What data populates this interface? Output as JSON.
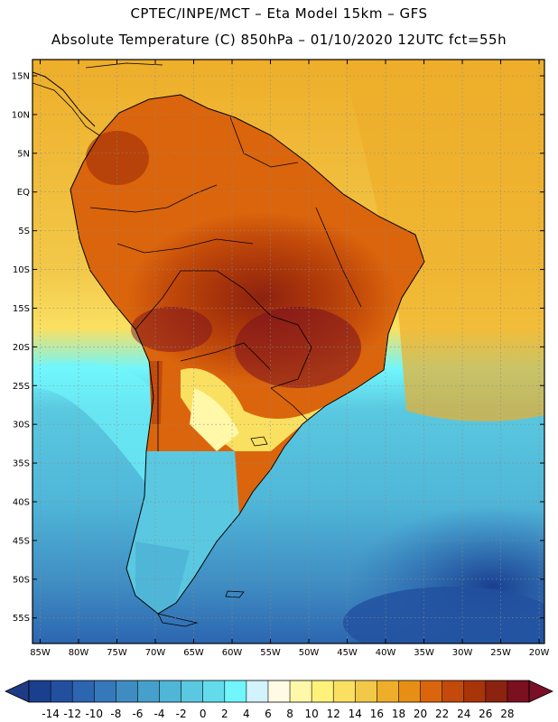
{
  "title": {
    "line1": "CPTEC/INPE/MCT –  Eta Model 15km – GFS",
    "line2": "Absolute Temperature (C) 850hPa – 01/10/2020 12UTC fct=55h"
  },
  "lat_labels": [
    "15N",
    "10N",
    "5N",
    "EQ",
    "5S",
    "10S",
    "15S",
    "20S",
    "25S",
    "30S",
    "35S",
    "40S",
    "45S",
    "50S",
    "55S"
  ],
  "lon_labels": [
    "85W",
    "80W",
    "75W",
    "70W",
    "65W",
    "60W",
    "55W",
    "50W",
    "45W",
    "40W",
    "35W",
    "30W",
    "25W",
    "20W"
  ],
  "colorbar": {
    "labels": [
      "-14",
      "-12",
      "-10",
      "-8",
      "-6",
      "-4",
      "-2",
      "0",
      "2",
      "4",
      "6",
      "8",
      "10",
      "12",
      "14",
      "16",
      "18",
      "20",
      "22",
      "24",
      "26",
      "28"
    ],
    "colors": [
      "#1a3f8f",
      "#22509f",
      "#2c66b0",
      "#3679ba",
      "#3f8cc2",
      "#46a0cc",
      "#4fb6d8",
      "#5ac8e0",
      "#62dcec",
      "#70f6fc",
      "#d2f2fc",
      "#fffae3",
      "#fff8a8",
      "#fff27a",
      "#fae061",
      "#f2c849",
      "#eeae2a",
      "#e78e14",
      "#db650c",
      "#c24a0a",
      "#a8340a",
      "#8c2210",
      "#7a1020"
    ],
    "low_color": "#1e3b86",
    "high_color": "#7a0f28"
  },
  "icons": {
    "map": "temperature-map",
    "graticule": "grid-lines"
  }
}
